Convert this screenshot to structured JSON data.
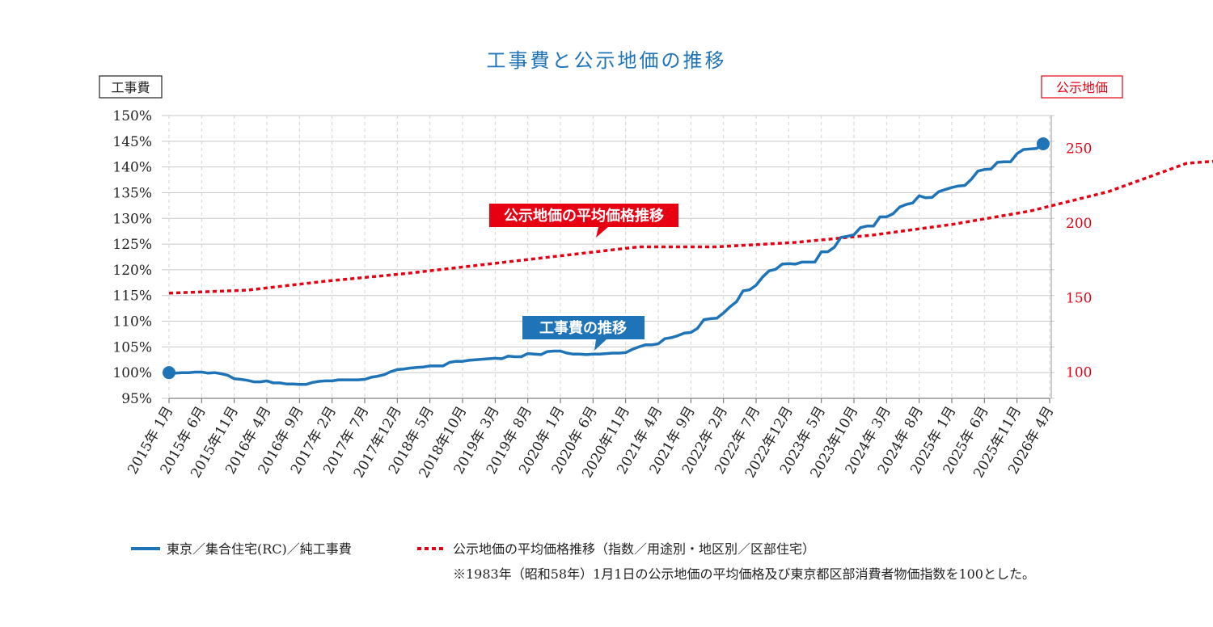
{
  "colors": {
    "construction": "#1f73b7",
    "land": "#e60012",
    "grid": "#cccccc",
    "axis": "#666666",
    "text": "#222222"
  },
  "chart_data": {
    "type": "line",
    "title": "工事費と公示地価の推移",
    "left_axis_label": "工事費",
    "right_axis_label": "公示地価",
    "left_ylim": [
      95,
      150
    ],
    "left_ticks": [
      "150%",
      "145%",
      "140%",
      "135%",
      "130%",
      "125%",
      "120%",
      "115%",
      "110%",
      "105%",
      "100%",
      "95%"
    ],
    "right_ylim": [
      82.5,
      272
    ],
    "right_ticks": [
      "250",
      "200",
      "150",
      "100"
    ],
    "x_tick_labels": [
      "2015年 1月",
      "2015年 6月",
      "2015年11月",
      "2016年 4月",
      "2016年 9月",
      "2017年 2月",
      "2017年 7月",
      "2017年12月",
      "2018年 5月",
      "2018年10月",
      "2019年 3月",
      "2019年 8月",
      "2020年 1月",
      "2020年 6月",
      "2020年11月",
      "2021年 4月",
      "2021年 9月",
      "2022年 2月",
      "2022年 7月",
      "2022年12月",
      "2023年 5月",
      "2023年10月",
      "2024年 3月",
      "2024年 8月",
      "2025年 1月",
      "2025年 6月",
      "2025年11月",
      "2026年 4月"
    ],
    "callouts": {
      "land": "公示地価の平均価格推移",
      "construction": "工事費の推移"
    },
    "series": [
      {
        "name": "東京／集合住宅(RC)／純工事費",
        "axis": "left",
        "points": [
          [
            0,
            100.0
          ],
          [
            1,
            99.9
          ],
          [
            2,
            100.0
          ],
          [
            3,
            100.0
          ],
          [
            4,
            100.1
          ],
          [
            5,
            100.1
          ],
          [
            6,
            99.9
          ],
          [
            7,
            100.0
          ],
          [
            8,
            99.8
          ],
          [
            9,
            99.5
          ],
          [
            10,
            98.8
          ],
          [
            11,
            98.7
          ],
          [
            12,
            98.5
          ],
          [
            13,
            98.2
          ],
          [
            14,
            98.2
          ],
          [
            15,
            98.4
          ],
          [
            16,
            98.0
          ],
          [
            17,
            98.0
          ],
          [
            18,
            97.8
          ],
          [
            19,
            97.8
          ],
          [
            20,
            97.7
          ],
          [
            21,
            97.7
          ],
          [
            22,
            98.1
          ],
          [
            23,
            98.3
          ],
          [
            24,
            98.4
          ],
          [
            25,
            98.4
          ],
          [
            26,
            98.6
          ],
          [
            27,
            98.6
          ],
          [
            28,
            98.6
          ],
          [
            29,
            98.6
          ],
          [
            30,
            98.7
          ],
          [
            31,
            99.1
          ],
          [
            32,
            99.3
          ],
          [
            33,
            99.6
          ],
          [
            34,
            100.2
          ],
          [
            35,
            100.6
          ],
          [
            36,
            100.7
          ],
          [
            37,
            100.9
          ],
          [
            38,
            101.0
          ],
          [
            39,
            101.1
          ],
          [
            40,
            101.3
          ],
          [
            41,
            101.3
          ],
          [
            42,
            101.3
          ],
          [
            43,
            102.0
          ],
          [
            44,
            102.2
          ],
          [
            45,
            102.2
          ],
          [
            46,
            102.4
          ],
          [
            47,
            102.5
          ],
          [
            48,
            102.6
          ],
          [
            49,
            102.7
          ],
          [
            50,
            102.8
          ],
          [
            51,
            102.7
          ],
          [
            52,
            103.2
          ],
          [
            53,
            103.1
          ],
          [
            54,
            103.1
          ],
          [
            55,
            103.7
          ],
          [
            56,
            103.6
          ],
          [
            57,
            103.5
          ],
          [
            58,
            104.1
          ],
          [
            59,
            104.2
          ],
          [
            60,
            104.2
          ],
          [
            61,
            103.8
          ],
          [
            62,
            103.6
          ],
          [
            63,
            103.6
          ],
          [
            64,
            103.5
          ],
          [
            65,
            103.6
          ],
          [
            66,
            103.6
          ],
          [
            67,
            103.7
          ],
          [
            68,
            103.8
          ],
          [
            69,
            103.8
          ],
          [
            70,
            103.9
          ],
          [
            71,
            104.5
          ],
          [
            72,
            105.0
          ],
          [
            73,
            105.4
          ],
          [
            74,
            105.4
          ],
          [
            75,
            105.6
          ],
          [
            76,
            106.6
          ],
          [
            77,
            106.8
          ],
          [
            78,
            107.2
          ],
          [
            79,
            107.7
          ],
          [
            80,
            107.8
          ],
          [
            81,
            108.6
          ],
          [
            82,
            110.3
          ],
          [
            83,
            110.5
          ],
          [
            84,
            110.6
          ],
          [
            85,
            111.6
          ],
          [
            86,
            112.8
          ],
          [
            87,
            113.8
          ],
          [
            88,
            115.9
          ],
          [
            89,
            116.1
          ],
          [
            90,
            117.0
          ],
          [
            91,
            118.6
          ],
          [
            92,
            119.8
          ],
          [
            93,
            120.1
          ],
          [
            94,
            121.1
          ],
          [
            95,
            121.2
          ],
          [
            96,
            121.1
          ],
          [
            97,
            121.5
          ],
          [
            98,
            121.5
          ],
          [
            99,
            121.5
          ],
          [
            100,
            123.5
          ],
          [
            101,
            123.5
          ],
          [
            102,
            124.4
          ],
          [
            103,
            126.3
          ],
          [
            104,
            126.5
          ],
          [
            105,
            126.8
          ],
          [
            106,
            128.2
          ],
          [
            107,
            128.5
          ],
          [
            108,
            128.5
          ],
          [
            109,
            130.3
          ],
          [
            110,
            130.3
          ],
          [
            111,
            130.9
          ],
          [
            112,
            132.2
          ],
          [
            113,
            132.7
          ],
          [
            114,
            133.0
          ],
          [
            115,
            134.4
          ],
          [
            116,
            134.0
          ],
          [
            117,
            134.1
          ],
          [
            118,
            135.2
          ],
          [
            119,
            135.6
          ],
          [
            120,
            136.0
          ],
          [
            121,
            136.3
          ],
          [
            122,
            136.4
          ],
          [
            123,
            137.6
          ],
          [
            124,
            139.2
          ],
          [
            125,
            139.5
          ],
          [
            126,
            139.6
          ],
          [
            127,
            140.9
          ],
          [
            128,
            141.0
          ],
          [
            129,
            141.0
          ],
          [
            130,
            142.6
          ],
          [
            131,
            143.4
          ],
          [
            132,
            143.5
          ],
          [
            133,
            143.6
          ],
          [
            134,
            144.5
          ]
        ]
      },
      {
        "name": "公示地価の平均価格推移（指数／用途別・地区別／区部住宅）",
        "axis": "right",
        "points": [
          [
            0,
            153
          ],
          [
            12,
            155
          ],
          [
            24,
            161
          ],
          [
            36,
            166
          ],
          [
            48,
            172
          ],
          [
            60,
            178
          ],
          [
            72,
            184
          ],
          [
            84,
            184
          ],
          [
            96,
            187
          ],
          [
            108,
            192
          ],
          [
            120,
            199
          ],
          [
            132,
            208
          ],
          [
            144,
            221
          ],
          [
            156,
            240
          ],
          [
            168,
            244
          ]
        ]
      }
    ]
  },
  "legend": {
    "construction": "東京／集合住宅(RC)／純工事費",
    "land": "公示地価の平均価格推移（指数／用途別・地区別／区部住宅）",
    "footnote": "※1983年（昭和58年）1月1日の公示地価の平均価格及び東京都区部消費者物価指数を100とした。"
  }
}
